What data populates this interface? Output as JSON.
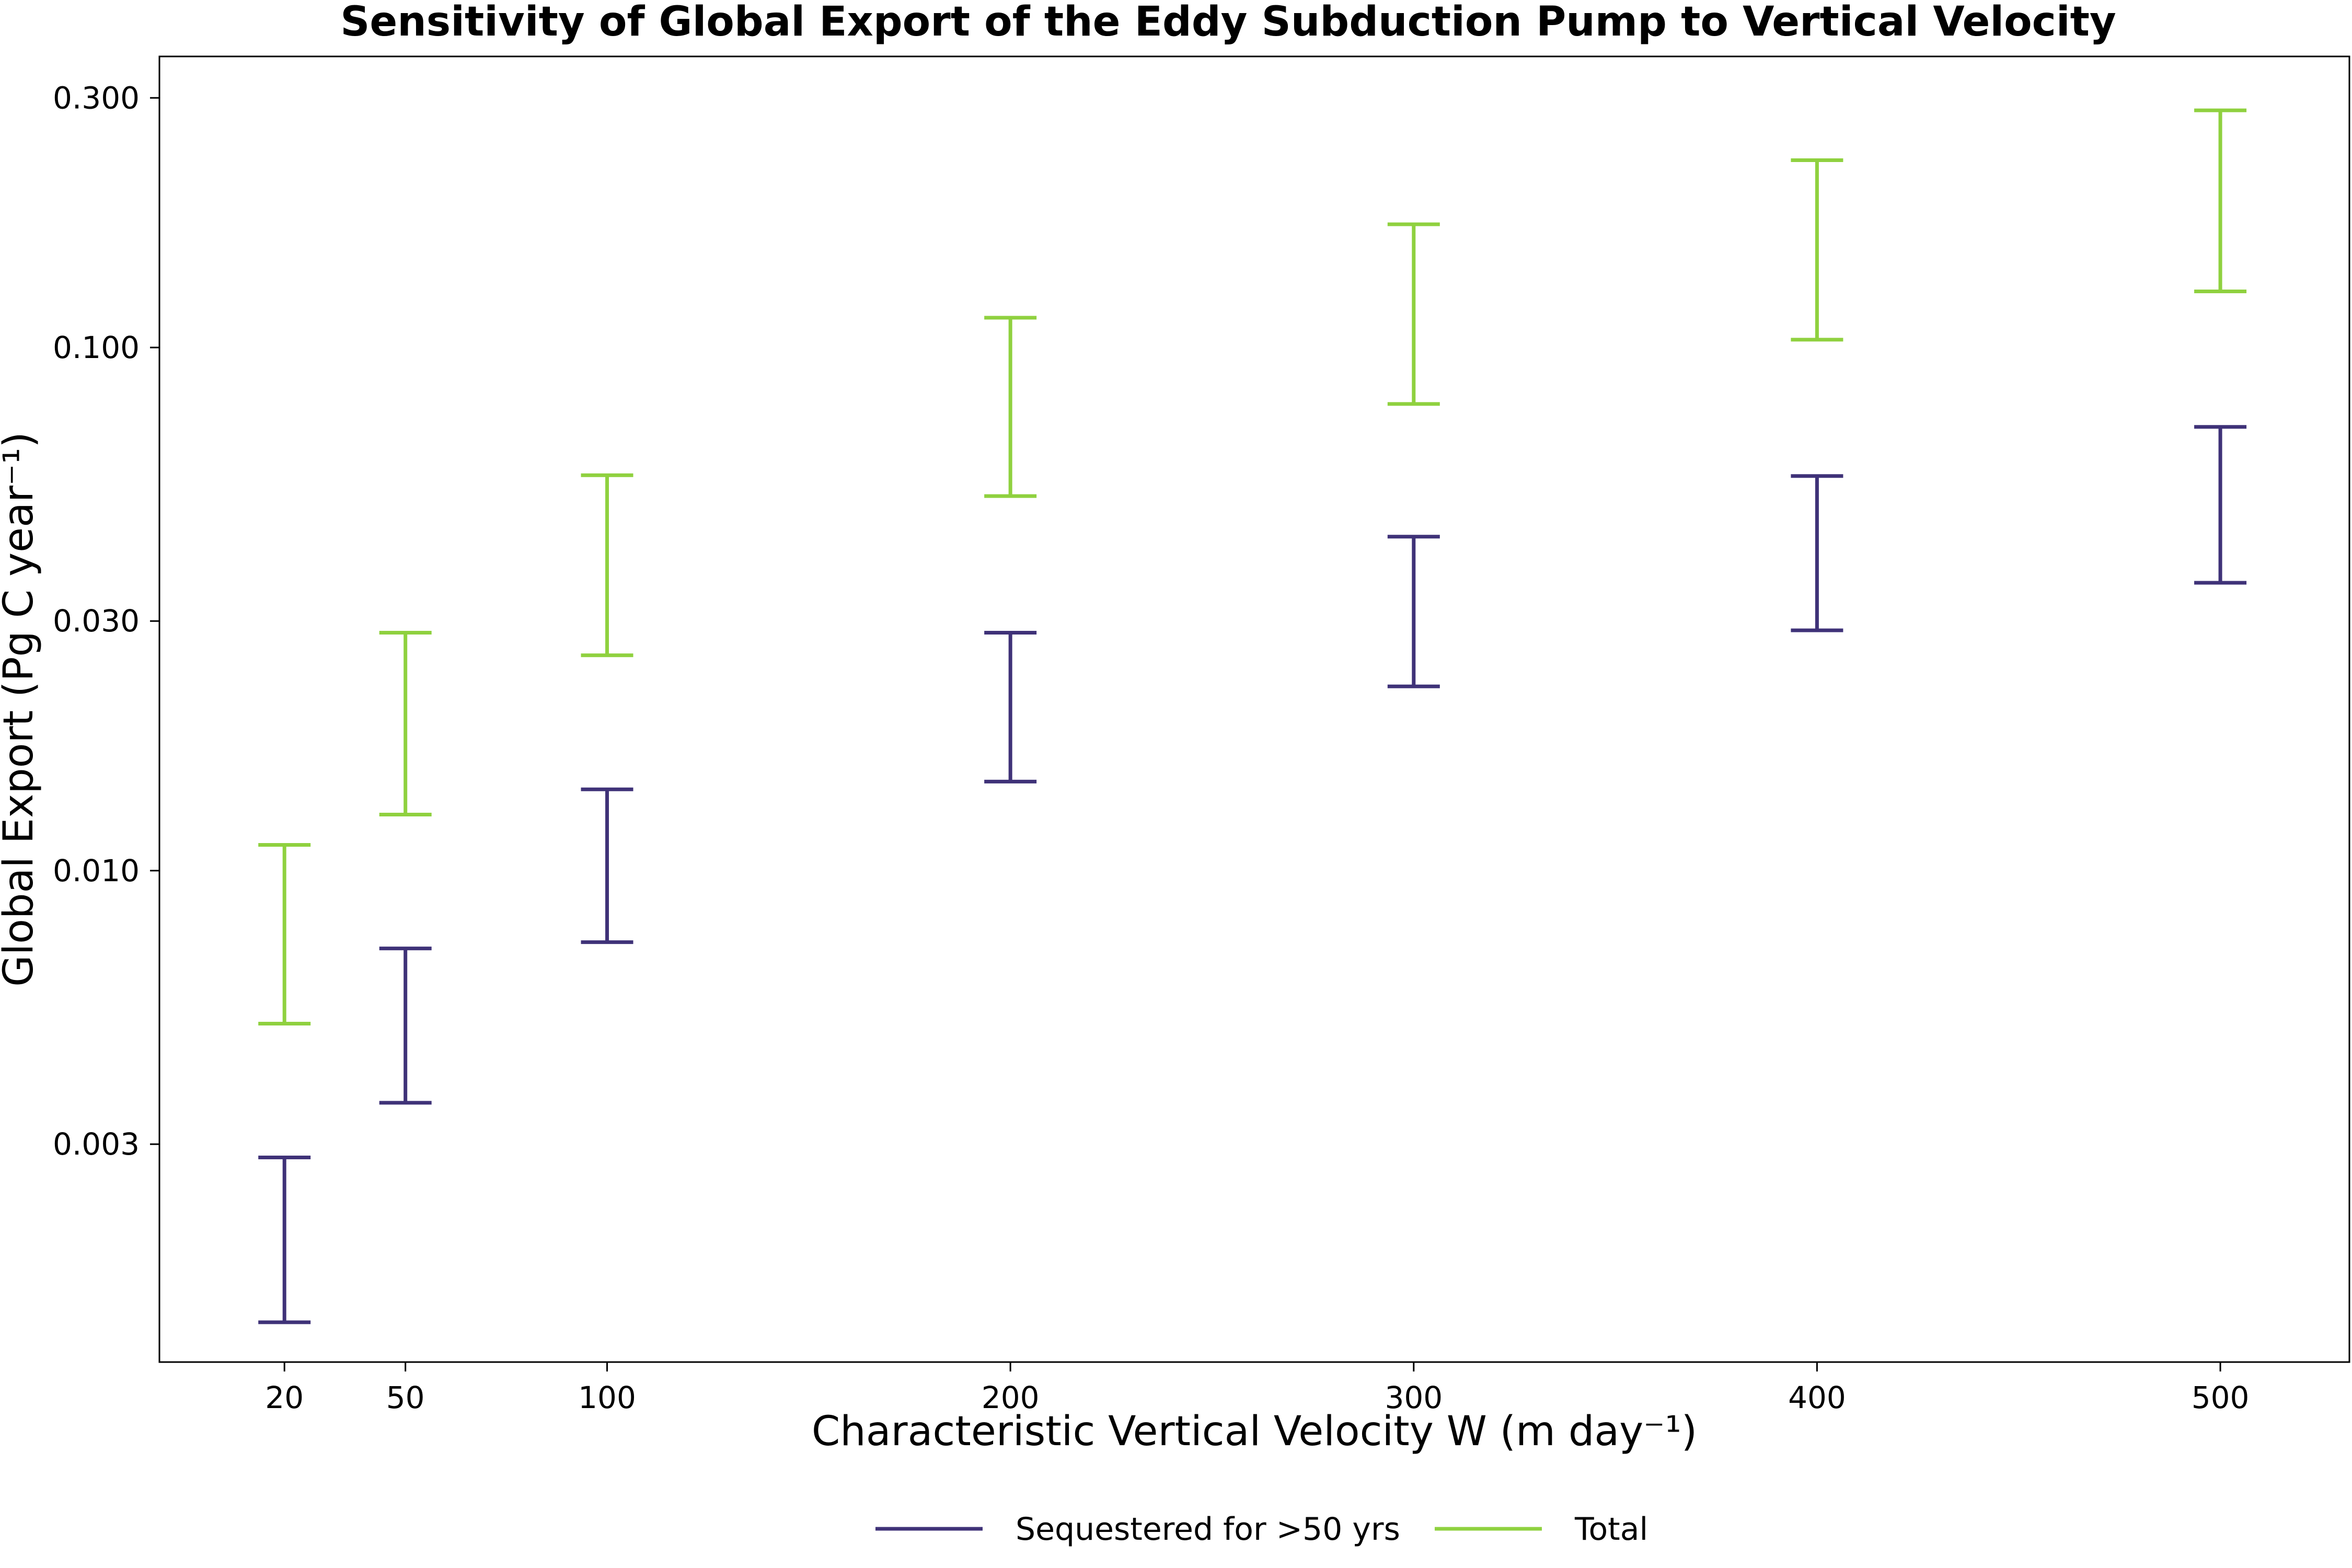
{
  "chart_data": {
    "type": "errorbar",
    "title": "Sensitivity of Global Export of the Eddy Subduction Pump to Vertical Velocity",
    "xlabel": "Characteristic Vertical Velocity W (m day⁻¹)",
    "ylabel": "Global Export (Pg C year⁻¹)",
    "x_ticks": [
      20,
      50,
      100,
      200,
      300,
      400,
      500
    ],
    "x_tick_labels": [
      "20",
      "50",
      "100",
      "200",
      "300",
      "400",
      "500"
    ],
    "xlim": [
      -11,
      532
    ],
    "y_scale": "log",
    "y_ticks": [
      0.003,
      0.01,
      0.03,
      0.1,
      0.3
    ],
    "y_tick_labels": [
      "0.003",
      "0.010",
      "0.030",
      "0.100",
      "0.300"
    ],
    "ylim": [
      0.00115,
      0.36
    ],
    "grid": false,
    "legend_position": "bottom-center",
    "series": [
      {
        "name": "Sequestered for >50 yrs",
        "color": "#3f3278",
        "x": [
          20,
          50,
          100,
          200,
          300,
          400,
          500
        ],
        "lower": [
          0.00137,
          0.0036,
          0.0073,
          0.0148,
          0.0225,
          0.0288,
          0.0355
        ],
        "upper": [
          0.00283,
          0.0071,
          0.0143,
          0.0285,
          0.0435,
          0.0568,
          0.0705
        ]
      },
      {
        "name": "Total",
        "color": "#8fd13f",
        "x": [
          20,
          50,
          100,
          200,
          300,
          400,
          500
        ],
        "lower": [
          0.0051,
          0.0128,
          0.0258,
          0.052,
          0.078,
          0.1035,
          0.128
        ],
        "upper": [
          0.0112,
          0.0285,
          0.057,
          0.114,
          0.172,
          0.228,
          0.284
        ]
      }
    ]
  }
}
